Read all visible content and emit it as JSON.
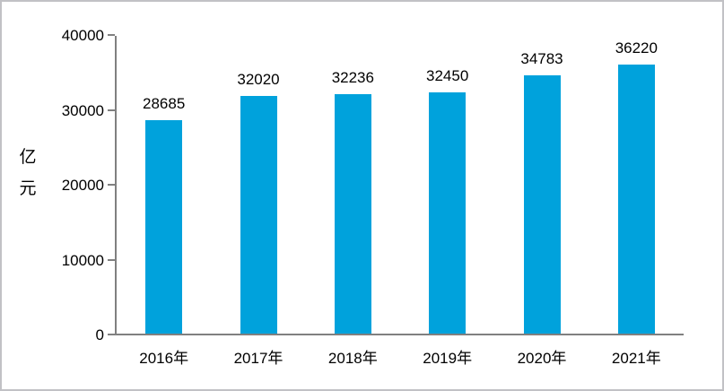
{
  "chart_data": {
    "type": "bar",
    "categories": [
      "2016年",
      "2017年",
      "2018年",
      "2019年",
      "2020年",
      "2021年"
    ],
    "values": [
      28685,
      32020,
      32236,
      32450,
      34783,
      36220
    ],
    "data_labels": [
      "28685",
      "32020",
      "32236",
      "32450",
      "34783",
      "36220"
    ],
    "title": "",
    "xlabel": "",
    "ylabel": "亿元",
    "yticks": [
      0,
      10000,
      20000,
      30000,
      40000
    ],
    "ytick_labels": [
      "0",
      "10000",
      "20000",
      "30000",
      "40000"
    ],
    "ylim": [
      0,
      40000
    ],
    "grid": false,
    "legend": false,
    "data_labels_shown": true,
    "colors": {
      "bar": "#00A2DC",
      "axis": "#808080",
      "text": "#000000",
      "background": "#ffffff",
      "frame_border": "#c1c1c5"
    }
  }
}
